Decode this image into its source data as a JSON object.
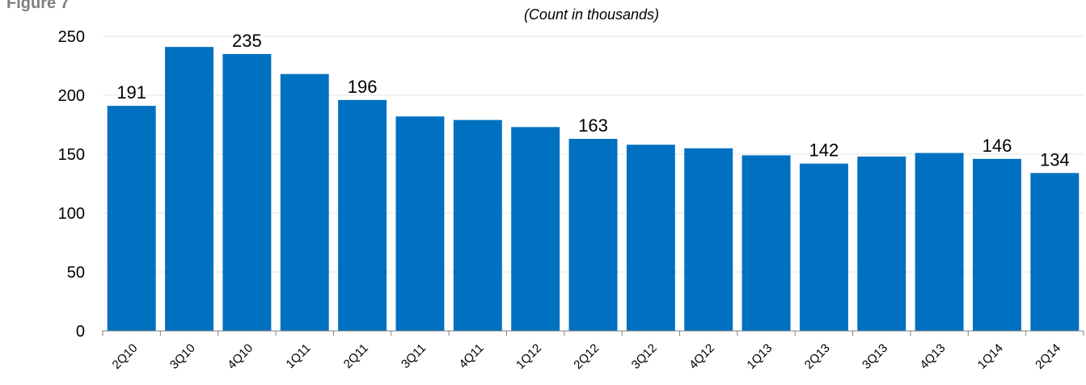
{
  "figure_label": "Figure 7",
  "chart_data": {
    "type": "bar",
    "title": "",
    "subtitle": "(Count in thousands)",
    "xlabel": "",
    "ylabel": "",
    "categories": [
      "2Q10",
      "3Q10",
      "4Q10",
      "1Q11",
      "2Q11",
      "3Q11",
      "4Q11",
      "1Q12",
      "2Q12",
      "3Q12",
      "4Q12",
      "1Q13",
      "2Q13",
      "3Q13",
      "4Q13",
      "1Q14",
      "2Q14"
    ],
    "values": [
      191,
      241,
      235,
      218,
      196,
      182,
      179,
      173,
      163,
      158,
      155,
      149,
      142,
      148,
      151,
      146,
      134
    ],
    "data_labels": [
      "191",
      "",
      "235",
      "",
      "196",
      "",
      "",
      "",
      "163",
      "",
      "",
      "",
      "142",
      "",
      "",
      "146",
      "134"
    ],
    "ylim": [
      0,
      250
    ],
    "yticks": [
      0,
      50,
      100,
      150,
      200,
      250
    ],
    "grid": true,
    "bar_color": "#0070c0",
    "grid_color": "#e6e6e6"
  }
}
